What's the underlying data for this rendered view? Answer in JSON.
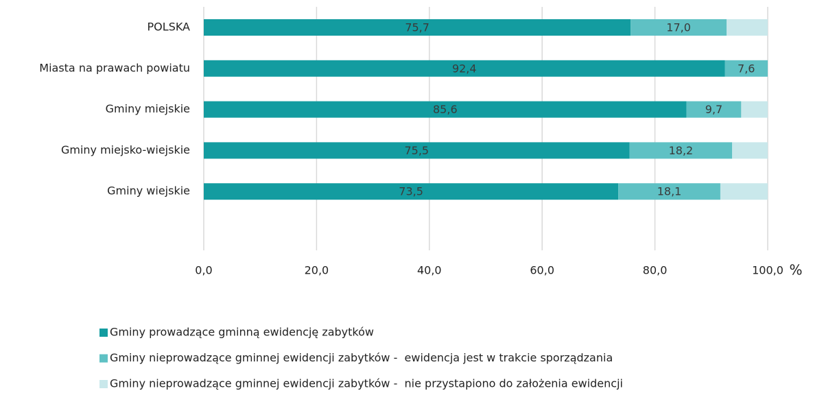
{
  "chart_data": {
    "type": "bar",
    "orientation": "horizontal",
    "stacked": true,
    "categories": [
      "POLSKA",
      "Miasta na prawach powiatu",
      "Gminy miejskie",
      "Gminy miejsko-wiejskie",
      "Gminy wiejskie"
    ],
    "series": [
      {
        "name": "Gminy prowadzące gminną ewidencję zabytków",
        "color": "#139ca0",
        "values": [
          75.7,
          92.4,
          85.6,
          75.5,
          73.5
        ],
        "value_labels": [
          "75,7",
          "92,4",
          "85,6",
          "75,5",
          "73,5"
        ]
      },
      {
        "name": "Gminy nieprowadzące gminnej ewidencji zabytków -  ewidencja jest w trakcie sporządzania",
        "color": "#5fc1c4",
        "values": [
          17.0,
          7.6,
          9.7,
          18.2,
          18.1
        ],
        "value_labels": [
          "17,0",
          "7,6",
          "9,7",
          "18,2",
          "18,1"
        ]
      },
      {
        "name": "Gminy nieprowadzące gminnej ewidencji zabytków -  nie przystapiono do założenia ewidencji",
        "color": "#c9e8eb",
        "values": [
          7.3,
          0.0,
          4.7,
          6.3,
          8.4
        ]
      }
    ],
    "xlabel": "%",
    "xlim": [
      0,
      100
    ],
    "xticks": [
      {
        "value": 0,
        "label": "0,0"
      },
      {
        "value": 20,
        "label": "20,0"
      },
      {
        "value": 40,
        "label": "40,0"
      },
      {
        "value": 60,
        "label": "60,0"
      },
      {
        "value": 80,
        "label": "80,0"
      },
      {
        "value": 100,
        "label": "100,0"
      }
    ],
    "grid": true
  }
}
